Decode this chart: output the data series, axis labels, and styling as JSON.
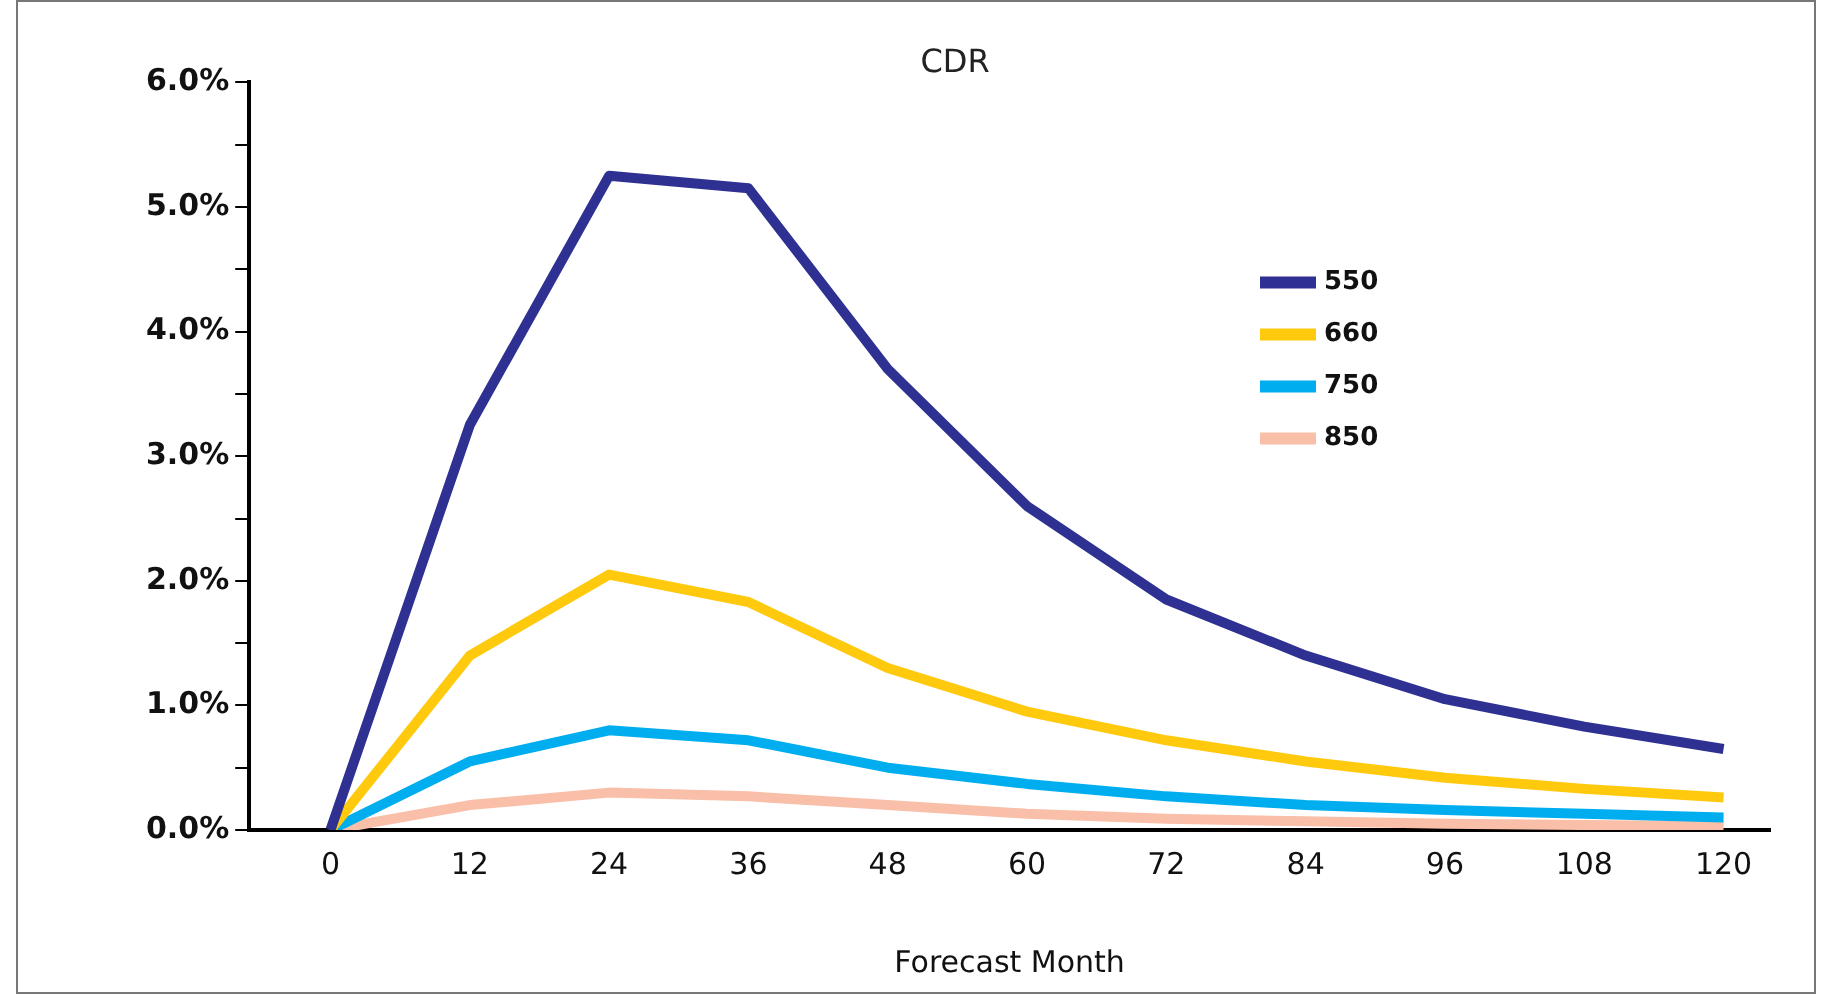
{
  "chart_data": {
    "type": "line",
    "title": "CDR",
    "xlabel": "Forecast Month",
    "x": [
      0,
      12,
      24,
      36,
      48,
      60,
      72,
      84,
      96,
      108,
      120
    ],
    "series": [
      {
        "name": "550",
        "color": "#2e3192",
        "values": [
          0,
          3.25,
          5.25,
          5.15,
          3.7,
          2.6,
          1.85,
          1.4,
          1.05,
          0.83,
          0.65
        ]
      },
      {
        "name": "660",
        "color": "#ffc90e",
        "values": [
          0,
          1.4,
          2.05,
          1.83,
          1.3,
          0.95,
          0.72,
          0.55,
          0.42,
          0.33,
          0.26
        ]
      },
      {
        "name": "750",
        "color": "#00aeef",
        "values": [
          0,
          0.55,
          0.8,
          0.72,
          0.5,
          0.37,
          0.27,
          0.2,
          0.16,
          0.13,
          0.1
        ]
      },
      {
        "name": "850",
        "color": "#f9bfa8",
        "values": [
          0,
          0.2,
          0.3,
          0.27,
          0.2,
          0.13,
          0.09,
          0.07,
          0.05,
          0.04,
          0.03
        ]
      }
    ],
    "xlim": [
      -7,
      124
    ],
    "xticks": [
      0,
      12,
      24,
      36,
      48,
      60,
      72,
      84,
      96,
      108,
      120
    ],
    "ylim": [
      0,
      6
    ],
    "yticks": [
      {
        "value": 0,
        "label": "0.0%"
      },
      {
        "value": 0.5,
        "label": null
      },
      {
        "value": 1,
        "label": "1.0%"
      },
      {
        "value": 1.5,
        "label": null
      },
      {
        "value": 2,
        "label": "2.0%"
      },
      {
        "value": 2.5,
        "label": null
      },
      {
        "value": 3,
        "label": "3.0%"
      },
      {
        "value": 3.5,
        "label": null
      },
      {
        "value": 4,
        "label": "4.0%"
      },
      {
        "value": 4.5,
        "label": null
      },
      {
        "value": 5,
        "label": "5.0%"
      },
      {
        "value": 5.5,
        "label": null
      },
      {
        "value": 6,
        "label": "6.0%"
      }
    ],
    "grid": false,
    "legend": "top right",
    "marker": "none",
    "line_style": "solid"
  }
}
